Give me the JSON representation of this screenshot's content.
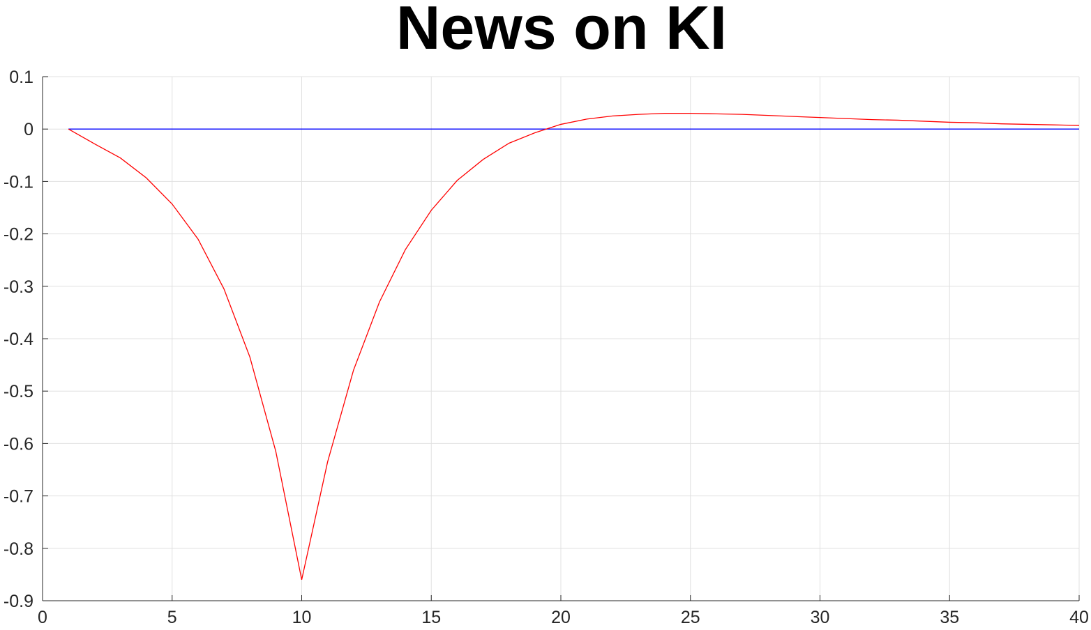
{
  "chart_data": {
    "type": "line",
    "title": "News on KI",
    "xlabel": "",
    "ylabel": "",
    "xlim": [
      0,
      40
    ],
    "ylim": [
      -0.9,
      0.1
    ],
    "x_ticks": [
      0,
      5,
      10,
      15,
      20,
      25,
      30,
      35,
      40
    ],
    "x_tick_labels": [
      "0",
      "5",
      "10",
      "15",
      "20",
      "25",
      "30",
      "35",
      "40"
    ],
    "y_ticks": [
      0.1,
      0,
      -0.1,
      -0.2,
      -0.3,
      -0.4,
      -0.5,
      -0.6,
      -0.7,
      -0.8,
      -0.9
    ],
    "y_tick_labels": [
      "0.1",
      "0",
      "-0.1",
      "-0.2",
      "-0.3",
      "-0.4",
      "-0.5",
      "-0.6",
      "-0.7",
      "-0.8",
      "-0.9"
    ],
    "grid": true,
    "legend": "none",
    "series": [
      {
        "color": "#ff0000",
        "x": [
          1,
          2,
          3,
          4,
          5,
          6,
          7,
          8,
          9,
          10,
          11,
          12,
          13,
          14,
          15,
          16,
          17,
          18,
          19,
          20,
          21,
          22,
          23,
          24,
          25,
          26,
          27,
          28,
          29,
          30,
          31,
          32,
          33,
          34,
          35,
          36,
          37,
          38,
          39,
          40
        ],
        "values": [
          0,
          -0.028,
          -0.055,
          -0.093,
          -0.143,
          -0.21,
          -0.305,
          -0.435,
          -0.615,
          -0.86,
          -0.635,
          -0.46,
          -0.33,
          -0.23,
          -0.155,
          -0.098,
          -0.058,
          -0.027,
          -0.007,
          0.009,
          0.019,
          0.025,
          0.028,
          0.03,
          0.03,
          0.029,
          0.028,
          0.026,
          0.024,
          0.022,
          0.02,
          0.018,
          0.017,
          0.015,
          0.013,
          0.012,
          0.01,
          0.009,
          0.008,
          0.007
        ]
      },
      {
        "color": "#0000ff",
        "x": [
          1,
          40
        ],
        "values": [
          0,
          0
        ]
      }
    ]
  }
}
